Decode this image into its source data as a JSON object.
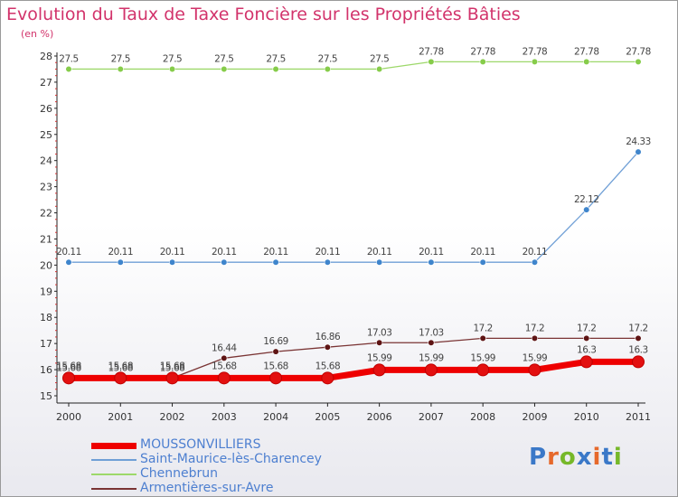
{
  "header": {
    "title": "Evolution du Taux de Taxe Foncière sur les Propriétés Bâties",
    "subtitle": "(en %)"
  },
  "logo": {
    "text": "Proxiti",
    "letter_colors": [
      "#3a78c8",
      "#e6692c",
      "#76b82a",
      "#3a78c8",
      "#e6692c",
      "#3a78c8",
      "#76b82a"
    ]
  },
  "chart_data": {
    "type": "line",
    "title": "Evolution du Taux de Taxe Foncière sur les Propriétés Bâties",
    "ylabel": "(en %)",
    "x": [
      "2000",
      "2001",
      "2002",
      "2003",
      "2004",
      "2005",
      "2006",
      "2007",
      "2008",
      "2009",
      "2010",
      "2011"
    ],
    "ylim": [
      15,
      28
    ],
    "yticks": [
      "15",
      "16",
      "17",
      "18",
      "19",
      "20",
      "21",
      "22",
      "23",
      "24",
      "25",
      "26",
      "27",
      "28"
    ],
    "grid": false,
    "legend": "bottom-left",
    "series": [
      {
        "name": "MOUSSONVILLIERS",
        "color": "#ee0000",
        "marker_color": "#e31010",
        "values": [
          15.68,
          15.68,
          15.68,
          15.68,
          15.68,
          15.68,
          15.99,
          15.99,
          15.99,
          15.99,
          16.3,
          16.3
        ],
        "labels": [
          "15.68",
          "15.68",
          "15.68",
          "15.68",
          "15.68",
          "15.68",
          "15.99",
          "15.99",
          "15.99",
          "15.99",
          "16.3",
          "16.3"
        ]
      },
      {
        "name": "Saint-Maurice-lès-Charencey",
        "color": "#6f9fd6",
        "marker_color": "#3f85cc",
        "values": [
          20.11,
          20.11,
          20.11,
          20.11,
          20.11,
          20.11,
          20.11,
          20.11,
          20.11,
          20.11,
          22.12,
          24.33
        ],
        "labels": [
          "20.11",
          "20.11",
          "20.11",
          "20.11",
          "20.11",
          "20.11",
          "20.11",
          "20.11",
          "20.11",
          "20.11",
          "22.12",
          "24.33"
        ]
      },
      {
        "name": "Chennebrun",
        "color": "#9dd86a",
        "marker_color": "#86cc4a",
        "values": [
          27.5,
          27.5,
          27.5,
          27.5,
          27.5,
          27.5,
          27.5,
          27.78,
          27.78,
          27.78,
          27.78,
          27.78
        ],
        "labels": [
          "27.5",
          "27.5",
          "27.5",
          "27.5",
          "27.5",
          "27.5",
          "27.5",
          "27.78",
          "27.78",
          "27.78",
          "27.78",
          "27.78"
        ]
      },
      {
        "name": "Armentières-sur-Avre",
        "color": "#7a3434",
        "marker_color": "#5e1414",
        "values": [
          15.68,
          15.68,
          15.68,
          16.44,
          16.69,
          16.86,
          17.03,
          17.03,
          17.2,
          17.2,
          17.2,
          17.2
        ],
        "labels": [
          "15.68",
          "15.68",
          "15.68",
          "16.44",
          "16.69",
          "16.86",
          "17.03",
          "17.03",
          "17.2",
          "17.2",
          "17.2",
          "17.2"
        ]
      }
    ]
  }
}
